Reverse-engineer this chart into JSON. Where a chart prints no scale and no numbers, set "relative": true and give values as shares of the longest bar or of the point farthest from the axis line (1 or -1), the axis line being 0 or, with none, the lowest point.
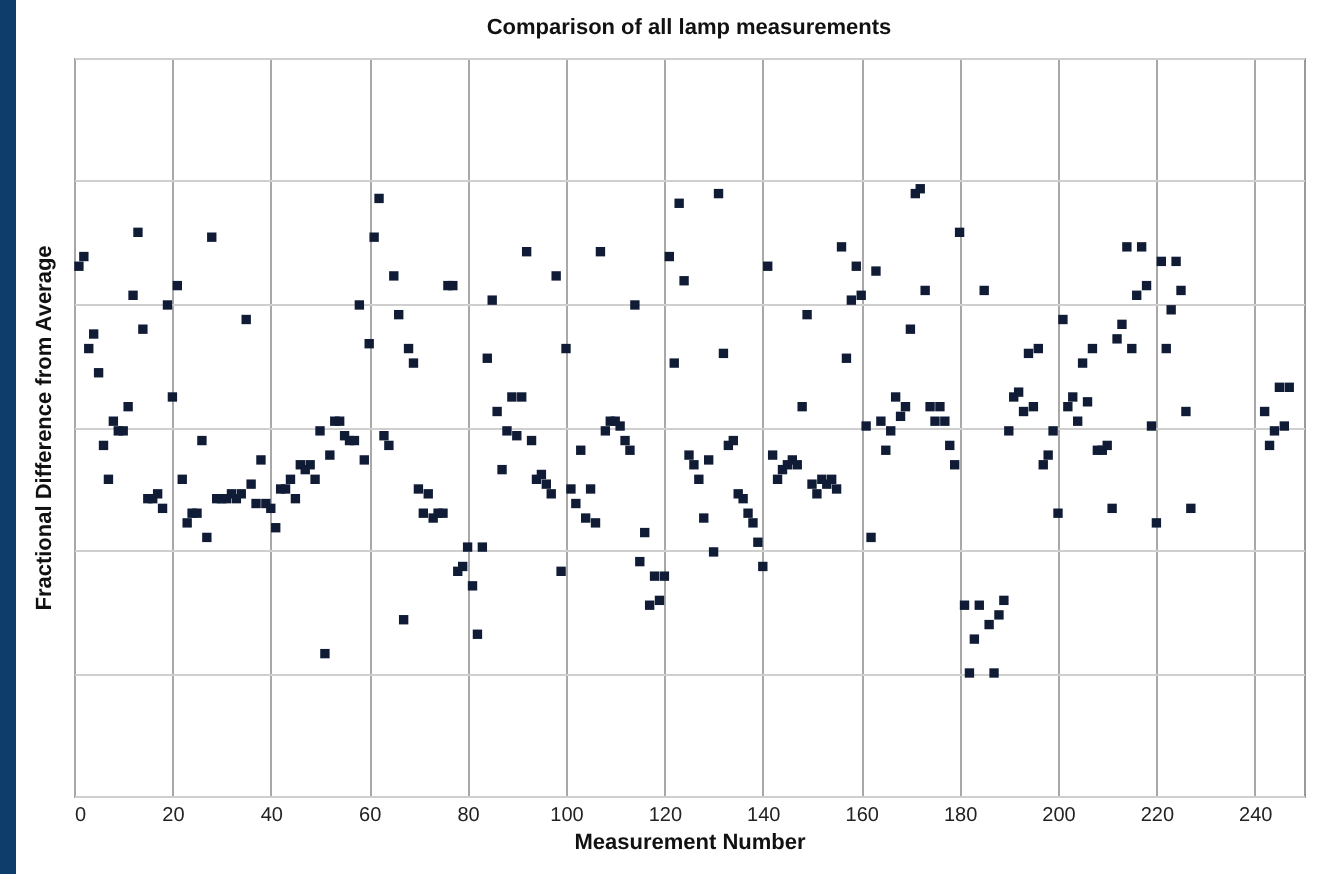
{
  "chart_data": {
    "type": "scatter",
    "title": "Comparison of all lamp measurements",
    "xlabel": "Measurement Number",
    "ylabel": "Fractional Difference from Average",
    "relative": true,
    "xlim": [
      0,
      250
    ],
    "xticks": [
      0,
      20,
      40,
      60,
      80,
      100,
      120,
      140,
      160,
      180,
      200,
      220,
      240
    ],
    "grid": true,
    "marker": "square",
    "color": "#101c36",
    "x": [
      1,
      2,
      3,
      4,
      5,
      6,
      7,
      8,
      9,
      10,
      11,
      12,
      13,
      14,
      15,
      16,
      17,
      18,
      19,
      20,
      21,
      22,
      23,
      24,
      25,
      26,
      27,
      28,
      29,
      30,
      31,
      32,
      33,
      34,
      35,
      36,
      37,
      38,
      39,
      40,
      41,
      42,
      43,
      44,
      45,
      46,
      47,
      48,
      49,
      50,
      51,
      52,
      53,
      54,
      55,
      56,
      57,
      58,
      59,
      60,
      61,
      62,
      63,
      64,
      65,
      66,
      67,
      68,
      69,
      70,
      71,
      72,
      73,
      74,
      75,
      76,
      77,
      78,
      79,
      80,
      81,
      82,
      83,
      84,
      85,
      86,
      87,
      88,
      89,
      90,
      91,
      92,
      93,
      94,
      95,
      96,
      97,
      98,
      99,
      100,
      101,
      102,
      103,
      104,
      105,
      106,
      107,
      108,
      109,
      110,
      111,
      112,
      113,
      114,
      115,
      116,
      117,
      118,
      119,
      120,
      121,
      122,
      123,
      124,
      125,
      126,
      127,
      128,
      129,
      130,
      131,
      132,
      133,
      134,
      135,
      136,
      137,
      138,
      139,
      140,
      141,
      142,
      143,
      144,
      145,
      146,
      147,
      148,
      149,
      150,
      151,
      152,
      153,
      154,
      155,
      156,
      157,
      158,
      159,
      160,
      161,
      162,
      163,
      164,
      165,
      166,
      167,
      168,
      169,
      170,
      171,
      172,
      173,
      174,
      175,
      176,
      177,
      178,
      179,
      180,
      181,
      182,
      183,
      184,
      185,
      186,
      187,
      188,
      189,
      190,
      191,
      192,
      193,
      194,
      195,
      196,
      197,
      198,
      199,
      200,
      201,
      202,
      203,
      204,
      205,
      206,
      207,
      208,
      209,
      210,
      211,
      212,
      213,
      214,
      215,
      216,
      217,
      218,
      219,
      220,
      221,
      222,
      223,
      224,
      225,
      226,
      227,
      242,
      243,
      244,
      245,
      246,
      247
    ],
    "values": [
      0.84,
      0.86,
      0.67,
      0.7,
      0.62,
      0.47,
      0.4,
      0.52,
      0.5,
      0.5,
      0.55,
      0.78,
      0.91,
      0.71,
      0.36,
      0.36,
      0.37,
      0.34,
      0.76,
      0.57,
      0.8,
      0.4,
      0.31,
      0.33,
      0.33,
      0.48,
      0.28,
      0.9,
      0.36,
      0.36,
      0.36,
      0.37,
      0.36,
      0.37,
      0.73,
      0.39,
      0.35,
      0.44,
      0.35,
      0.34,
      0.3,
      0.38,
      0.38,
      0.4,
      0.36,
      0.43,
      0.42,
      0.43,
      0.4,
      0.5,
      0.04,
      0.45,
      0.52,
      0.52,
      0.49,
      0.48,
      0.48,
      0.76,
      0.44,
      0.68,
      0.9,
      0.98,
      0.49,
      0.47,
      0.82,
      0.74,
      0.11,
      0.67,
      0.64,
      0.38,
      0.33,
      0.37,
      0.32,
      0.33,
      0.33,
      0.8,
      0.8,
      0.21,
      0.22,
      0.26,
      0.18,
      0.08,
      0.26,
      0.65,
      0.77,
      0.54,
      0.42,
      0.5,
      0.57,
      0.49,
      0.57,
      0.87,
      0.48,
      0.4,
      0.41,
      0.39,
      0.37,
      0.82,
      0.21,
      0.67,
      0.38,
      0.35,
      0.46,
      0.32,
      0.38,
      0.31,
      0.87,
      0.5,
      0.52,
      0.52,
      0.51,
      0.48,
      0.46,
      0.76,
      0.23,
      0.29,
      0.14,
      0.2,
      0.15,
      0.2,
      0.86,
      0.64,
      0.97,
      0.81,
      0.45,
      0.43,
      0.4,
      0.32,
      0.44,
      0.25,
      0.99,
      0.66,
      0.47,
      0.48,
      0.37,
      0.36,
      0.33,
      0.31,
      0.27,
      0.22,
      0.84,
      0.45,
      0.4,
      0.42,
      0.43,
      0.44,
      0.43,
      0.55,
      0.74,
      0.39,
      0.37,
      0.4,
      0.39,
      0.4,
      0.38,
      0.88,
      0.65,
      0.77,
      0.84,
      0.78,
      0.51,
      0.28,
      0.83,
      0.52,
      0.46,
      0.5,
      0.57,
      0.53,
      0.55,
      0.71,
      0.99,
      1.0,
      0.79,
      0.55,
      0.52,
      0.55,
      0.52,
      0.47,
      0.43,
      0.91,
      0.14,
      0.0,
      0.07,
      0.14,
      0.79,
      0.1,
      0.0,
      0.12,
      0.15,
      0.5,
      0.57,
      0.58,
      0.54,
      0.66,
      0.55,
      0.67,
      0.43,
      0.45,
      0.5,
      0.33,
      0.73,
      0.55,
      0.57,
      0.52,
      0.64,
      0.56,
      0.67,
      0.46,
      0.46,
      0.47,
      0.34,
      0.69,
      0.72,
      0.88,
      0.67,
      0.78,
      0.88,
      0.8,
      0.51,
      0.31,
      0.85,
      0.67,
      0.75,
      0.85,
      0.79,
      0.54,
      0.34,
      0.54,
      0.47,
      0.5,
      0.59,
      0.51,
      0.59
    ]
  }
}
